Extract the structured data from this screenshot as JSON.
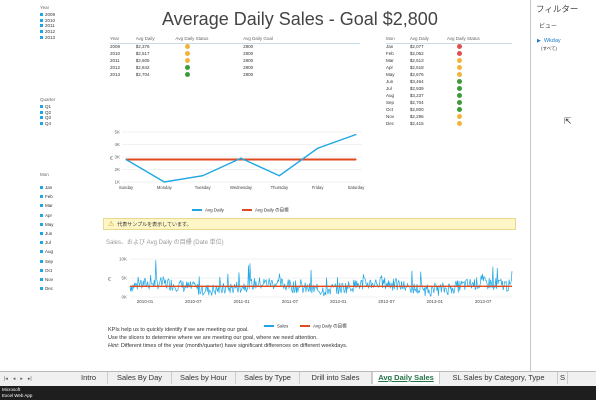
{
  "title": "Average Daily Sales - Goal $2,800",
  "colors": {
    "blue": "#1ea7e4",
    "red": "#e24a1f",
    "green": "#3c9c3c",
    "amber": "#f0b43c",
    "bad": "#e05050"
  },
  "slicers": {
    "year": {
      "title": "Year",
      "items": [
        "2009",
        "2010",
        "2011",
        "2012",
        "2013"
      ]
    },
    "quarter": {
      "title": "Quarter",
      "items": [
        "Q1",
        "Q2",
        "Q3",
        "Q4"
      ]
    },
    "mon": {
      "title": "Mon",
      "items": [
        "Jan",
        "Feb",
        "Mar",
        "Apr",
        "May",
        "Jun",
        "Jul",
        "Aug",
        "Sep",
        "Oct",
        "Nov",
        "Dec"
      ]
    }
  },
  "year_table": {
    "headers": [
      "Year",
      "Avg Daily",
      "Avg Daily Status",
      "Avg Daily Goal"
    ],
    "rows": [
      {
        "label": "2009",
        "value": "$2,376",
        "status": "amber",
        "goal": "2800"
      },
      {
        "label": "2010",
        "value": "$2,517",
        "status": "amber",
        "goal": "2800"
      },
      {
        "label": "2011",
        "value": "$2,605",
        "status": "amber",
        "goal": "2800"
      },
      {
        "label": "2012",
        "value": "$2,842",
        "status": "green",
        "goal": "2800"
      },
      {
        "label": "2013",
        "value": "$2,704",
        "status": "green",
        "goal": "2800"
      }
    ]
  },
  "month_table": {
    "headers": [
      "Mon",
      "Avg Daily",
      "Avg Daily Status"
    ],
    "rows": [
      {
        "label": "Jan",
        "value": "$2,077",
        "status": "bad"
      },
      {
        "label": "Feb",
        "value": "$2,062",
        "status": "bad"
      },
      {
        "label": "Mar",
        "value": "$2,513",
        "status": "amber"
      },
      {
        "label": "Apr",
        "value": "$2,518",
        "status": "amber"
      },
      {
        "label": "May",
        "value": "$2,676",
        "status": "amber"
      },
      {
        "label": "Jun",
        "value": "$3,464",
        "status": "green"
      },
      {
        "label": "Jul",
        "value": "$2,939",
        "status": "green"
      },
      {
        "label": "Aug",
        "value": "$3,237",
        "status": "green"
      },
      {
        "label": "Sep",
        "value": "$2,704",
        "status": "green"
      },
      {
        "label": "Oct",
        "value": "$2,800",
        "status": "green"
      },
      {
        "label": "Nov",
        "value": "$2,296",
        "status": "amber"
      },
      {
        "label": "Dec",
        "value": "$2,415",
        "status": "amber"
      }
    ]
  },
  "chart_data": [
    {
      "type": "line",
      "categories": [
        "Sunday",
        "Monday",
        "Tuesday",
        "Wednesday",
        "Thursday",
        "Friday",
        "Saturday"
      ],
      "series": [
        {
          "name": "Avg Daily",
          "color": "#1ea7e4",
          "values": [
            2800,
            1000,
            1500,
            2900,
            1500,
            3700,
            4800
          ]
        },
        {
          "name": "Avg Daily の目標",
          "color": "#e24a1f",
          "values": [
            2800,
            2800,
            2800,
            2800,
            2800,
            2800,
            2800
          ]
        }
      ],
      "y_ticks": [
        "1K",
        "2K",
        "3K",
        "4K",
        "5K"
      ],
      "ylim": [
        1000,
        5000
      ],
      "ylabel": "€",
      "legend_position": "bottom-center"
    },
    {
      "type": "line",
      "title": "Sales、および Avg Daily の目標 (Date 単位)",
      "x_ticks": [
        "2010-01",
        "2010-07",
        "2011-01",
        "2011-07",
        "2012-01",
        "2012-07",
        "2013-01",
        "2013-07"
      ],
      "y_ticks": [
        "0K",
        "5K",
        "10K"
      ],
      "ylim": [
        0,
        10000
      ],
      "ylabel": "€",
      "series": [
        {
          "name": "Sales",
          "color": "#1ea7e4",
          "description_values_approx": "daily sales fluctuating 0K–10K"
        },
        {
          "name": "Avg Daily の目標",
          "color": "#e24a1f",
          "values_constant": 2800
        }
      ],
      "legend_position": "bottom-center"
    }
  ],
  "notice": "代表サンプルを表示しています。",
  "footer": {
    "line1": "KPIs help us to quickly identify if we are meeting our goal.",
    "line2": "Use the slicers to determine where we are meeting our goal, where we need attention.",
    "hint_label": "Hint:",
    "line3": " Different times of the year (month/quarter) have significant differences on different weekdays."
  },
  "filter_pane": {
    "title": "フィルター",
    "view": "ビュー",
    "field": "Wkday",
    "field_value": "(すべて)"
  },
  "tabs": [
    "Intro",
    "Sales By Day",
    "Sales by Hour",
    "Sales by Type",
    "Drill into Sales",
    "Avg Daily Sales",
    "SL Sales by Category, Type",
    "S"
  ],
  "active_tab": "Avg Daily Sales",
  "status": {
    "brand": "Microsoft",
    "app": "Excel Web App"
  }
}
